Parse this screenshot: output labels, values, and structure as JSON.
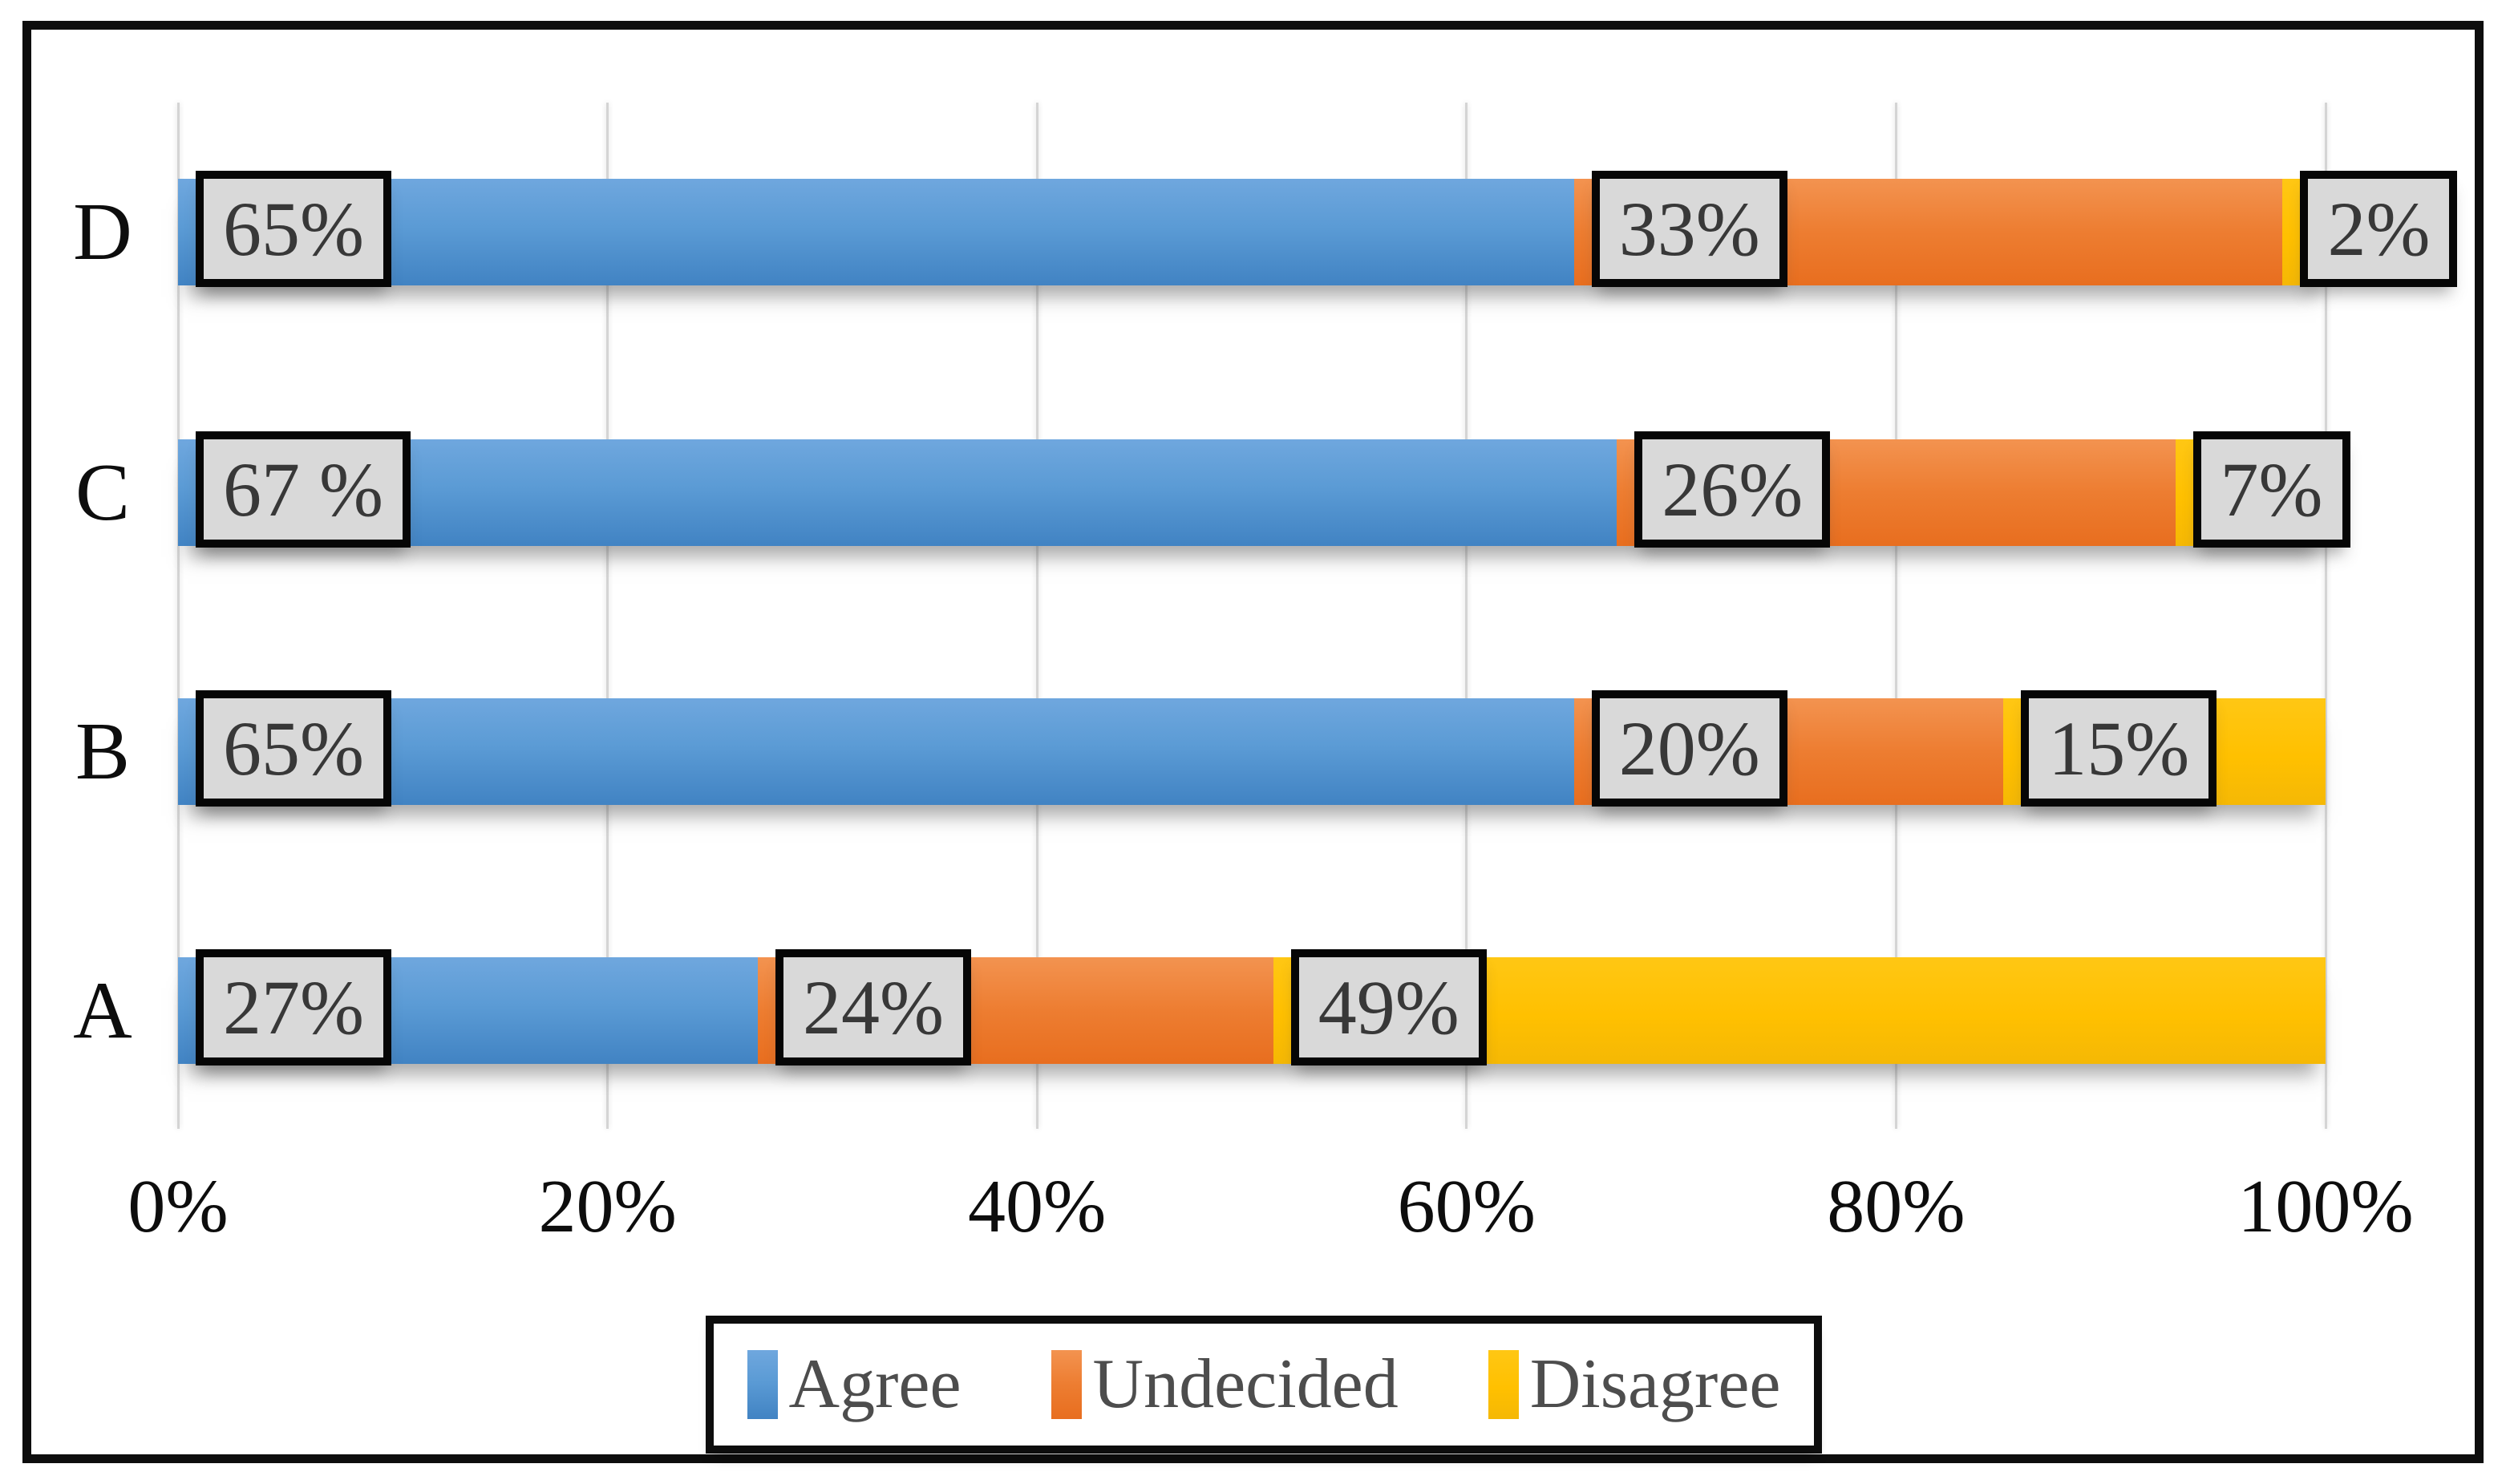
{
  "chart_data": {
    "type": "bar",
    "stacked": true,
    "orientation": "horizontal",
    "title": "",
    "categories": [
      "D",
      "C",
      "B",
      "A"
    ],
    "series": [
      {
        "name": "Agree",
        "color": "#5B9BD5",
        "values": [
          65,
          67,
          65,
          27
        ]
      },
      {
        "name": "Undecided",
        "color": "#ED7D31",
        "values": [
          33,
          26,
          20,
          24
        ]
      },
      {
        "name": "Disagree",
        "color": "#FFC000",
        "values": [
          2,
          7,
          15,
          49
        ]
      }
    ],
    "data_labels": [
      [
        "65%",
        "33%",
        "2%"
      ],
      [
        "67 %",
        "26%",
        "7%"
      ],
      [
        "65%",
        "20%",
        "15%"
      ],
      [
        "27%",
        "24%",
        "49%"
      ]
    ],
    "x_ticks": [
      "0%",
      "20%",
      "40%",
      "60%",
      "80%",
      "100%"
    ],
    "xlim": [
      0,
      100
    ],
    "grid": true,
    "legend_position": "bottom"
  },
  "styles": {
    "series_gradients": [
      "linear-gradient(180deg,#6FA7DE 0%,#5B9BD5 45%,#4183C3 100%)",
      "linear-gradient(180deg,#F39350 0%,#ED7D31 50%,#E86E1F 100%)",
      "linear-gradient(180deg,#FFC714 0%,#FFC000 55%,#F5B805 100%)"
    ],
    "gridline_color": "#d4d4d4",
    "label_box_fill": "#d9d9d9",
    "label_box_border": "#060606",
    "frame_border": "#0d0d0d",
    "background": "#ffffff"
  }
}
